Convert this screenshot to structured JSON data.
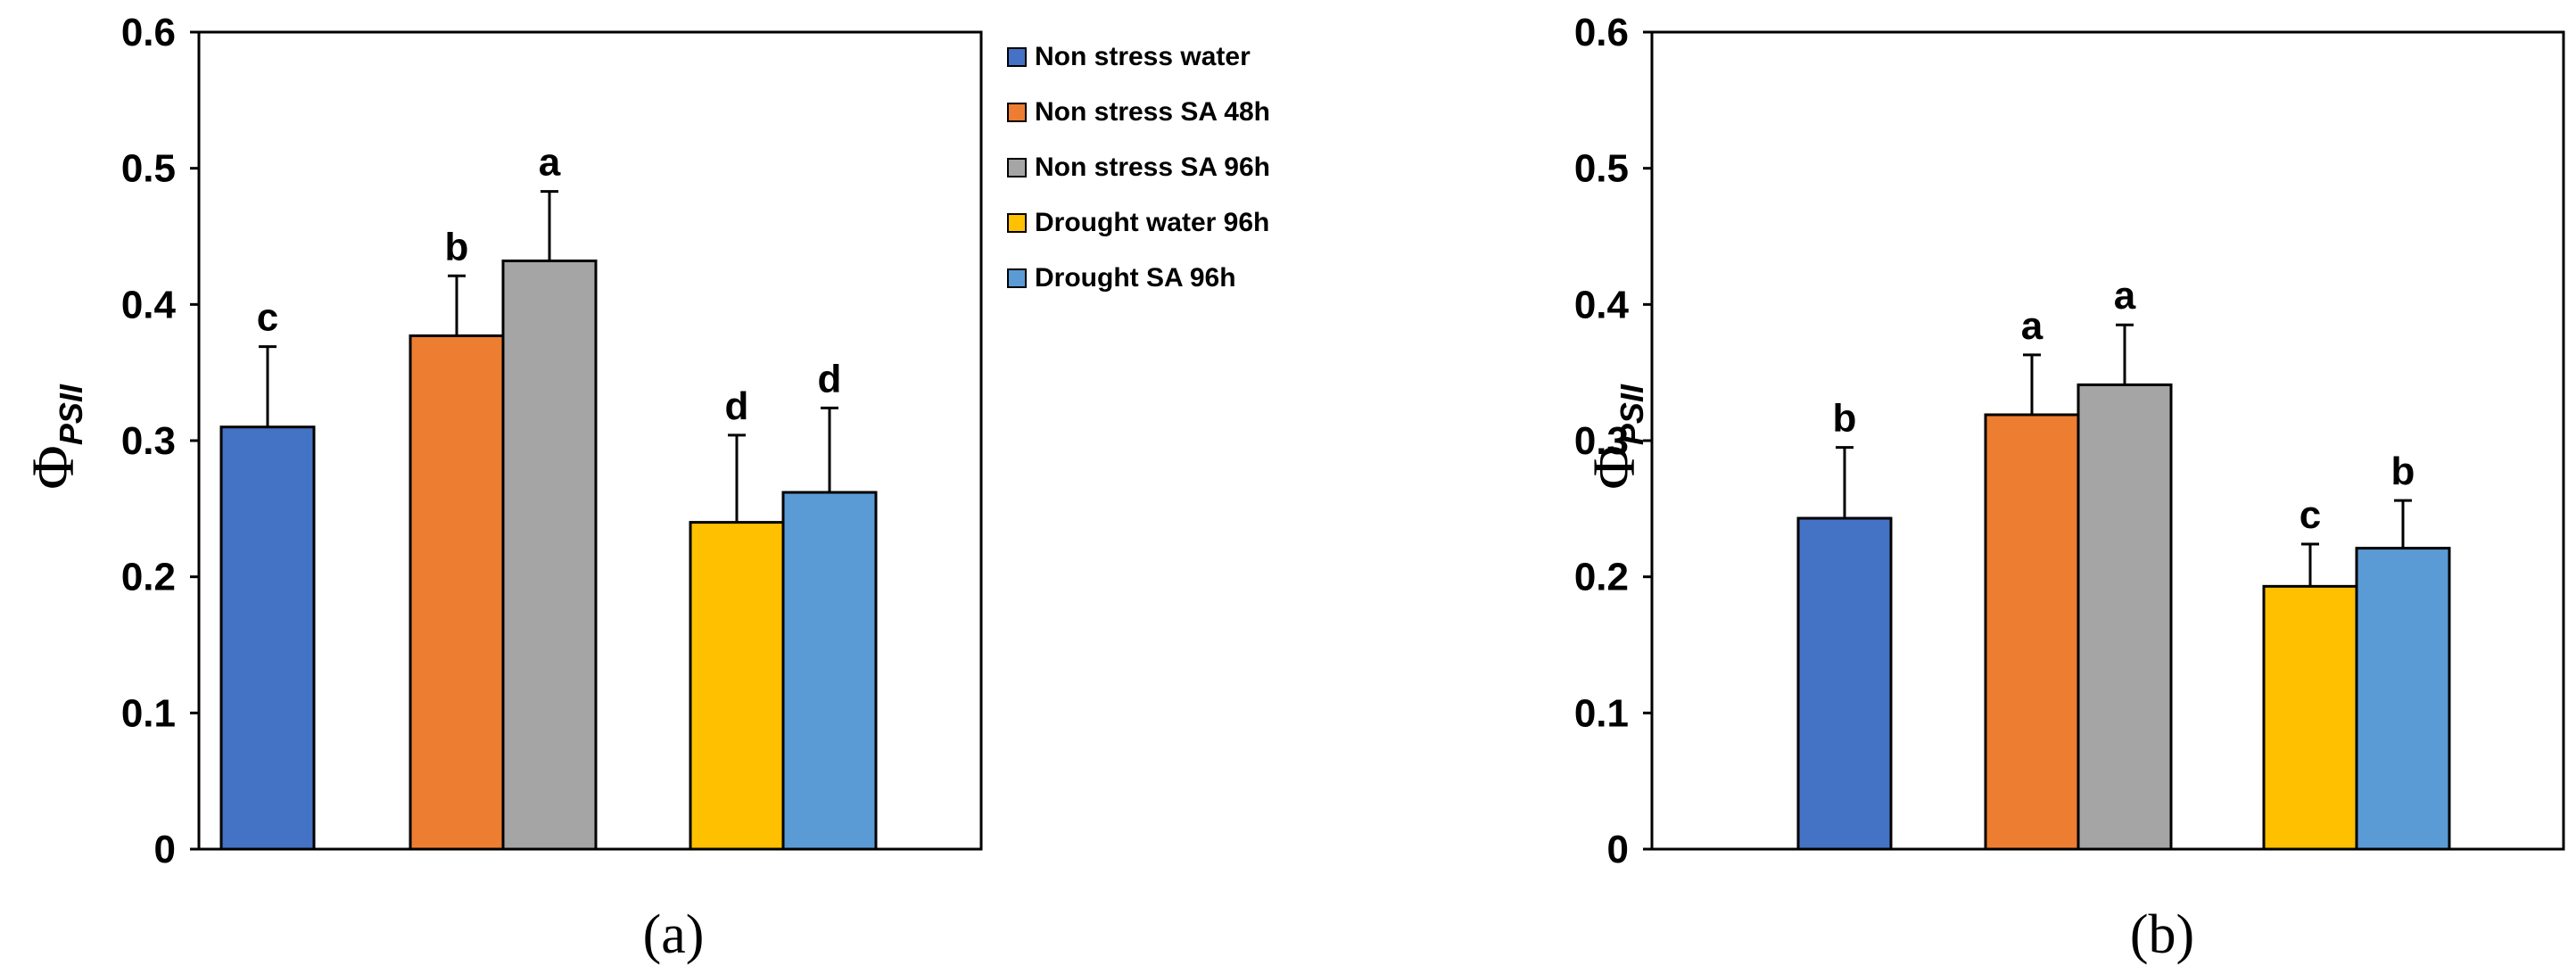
{
  "chart_data": [
    {
      "type": "bar",
      "panel_label": "(a)",
      "ylabel": {
        "main": "Φ",
        "sub": "PSII"
      },
      "ylim": [
        0,
        0.6
      ],
      "yticks": [
        "0",
        "0.1",
        "0.2",
        "0.3",
        "0.4",
        "0.5",
        "0.6"
      ],
      "grid": false,
      "legend_position": "right",
      "series": [
        {
          "name": "Non stress water",
          "value": 0.31,
          "error": 0.059,
          "letter": "c"
        },
        {
          "name": "Non stress SA 48h",
          "value": 0.377,
          "error": 0.044,
          "letter": "b"
        },
        {
          "name": "Non stress SA 96h",
          "value": 0.432,
          "error": 0.051,
          "letter": "a"
        },
        {
          "name": "Drought water 96h",
          "value": 0.24,
          "error": 0.064,
          "letter": "d"
        },
        {
          "name": "Drought SA 96h",
          "value": 0.262,
          "error": 0.062,
          "letter": "d"
        }
      ]
    },
    {
      "type": "bar",
      "panel_label": "(b)",
      "ylabel": {
        "main": "Φ",
        "sub": "PSII"
      },
      "ylim": [
        0,
        0.6
      ],
      "yticks": [
        "0",
        "0.1",
        "0.2",
        "0.3",
        "0.4",
        "0.5",
        "0.6"
      ],
      "grid": false,
      "series": [
        {
          "name": "Non stress water",
          "value": 0.243,
          "error": 0.052,
          "letter": "b"
        },
        {
          "name": "Non stress SA 48h",
          "value": 0.319,
          "error": 0.044,
          "letter": "a"
        },
        {
          "name": "Non stress SA 96h",
          "value": 0.341,
          "error": 0.044,
          "letter": "a"
        },
        {
          "name": "Drought water 96h",
          "value": 0.193,
          "error": 0.031,
          "letter": "c"
        },
        {
          "name": "Drought SA 96h",
          "value": 0.221,
          "error": 0.035,
          "letter": "b"
        }
      ]
    }
  ],
  "legend": [
    {
      "label": "Non stress water",
      "color": "#4472C4"
    },
    {
      "label": "Non stress SA 48h",
      "color": "#ED7D31"
    },
    {
      "label": "Non stress SA 96h",
      "color": "#A5A5A5"
    },
    {
      "label": "Drought water 96h",
      "color": "#FFC000"
    },
    {
      "label": "Drought SA 96h",
      "color": "#5B9BD5"
    }
  ]
}
